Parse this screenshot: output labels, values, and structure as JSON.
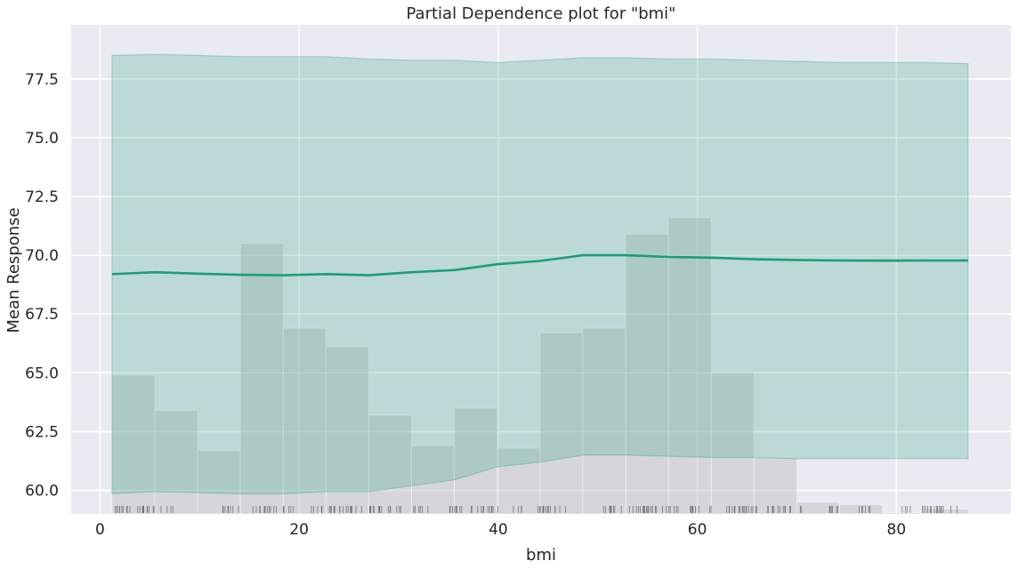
{
  "chart_data": {
    "type": "line",
    "title": "Partial Dependence plot for \"bmi\"",
    "xlabel": "bmi",
    "ylabel": "Mean Response",
    "xlim": [
      -2.9,
      91.5
    ],
    "ylim": [
      59.0,
      79.8
    ],
    "x_ticks": [
      0,
      20,
      40,
      60,
      80
    ],
    "x_tick_labels": [
      "0",
      "20",
      "40",
      "60",
      "80"
    ],
    "y_ticks": [
      60.0,
      62.5,
      65.0,
      67.5,
      70.0,
      72.5,
      75.0,
      77.5
    ],
    "y_tick_labels": [
      "60.0",
      "62.5",
      "65.0",
      "67.5",
      "70.0",
      "72.5",
      "75.0",
      "77.5"
    ],
    "grid": true,
    "colors": {
      "line": "#1b9e77",
      "band": "#1b9e77",
      "histogram": "#a9a9a9",
      "background": "#eaeaf2",
      "grid": "#ffffff",
      "rug": "#555555"
    },
    "series": [
      {
        "x": [
          1.2,
          5.5,
          9.8,
          14.1,
          18.4,
          22.7,
          27.0,
          31.3,
          35.6,
          39.9,
          44.2,
          48.5,
          52.8,
          57.1,
          61.4,
          65.7,
          70.0,
          74.3,
          78.6,
          82.9,
          87.2
        ],
        "values": [
          69.2,
          69.28,
          69.22,
          69.17,
          69.15,
          69.2,
          69.15,
          69.28,
          69.37,
          69.62,
          69.76,
          70.0,
          70.0,
          69.93,
          69.9,
          69.83,
          69.8,
          69.78,
          69.77,
          69.78,
          69.78
        ]
      }
    ],
    "band": {
      "x": [
        1.2,
        5.5,
        9.8,
        14.1,
        18.4,
        22.7,
        27.0,
        31.3,
        35.6,
        39.9,
        44.2,
        48.5,
        52.8,
        57.1,
        61.4,
        65.7,
        70.0,
        74.3,
        78.6,
        82.9,
        87.2
      ],
      "upper": [
        78.5,
        78.55,
        78.5,
        78.45,
        78.45,
        78.45,
        78.35,
        78.3,
        78.3,
        78.2,
        78.3,
        78.4,
        78.4,
        78.35,
        78.35,
        78.3,
        78.25,
        78.2,
        78.2,
        78.2,
        78.15
      ],
      "lower": [
        59.85,
        59.95,
        59.9,
        59.85,
        59.85,
        59.95,
        59.95,
        60.2,
        60.45,
        61.0,
        61.2,
        61.5,
        61.5,
        61.45,
        61.4,
        61.4,
        61.35,
        61.35,
        61.35,
        61.35,
        61.35
      ]
    },
    "histogram": {
      "bin_edges": [
        1.2,
        5.5,
        9.8,
        14.1,
        18.4,
        22.7,
        27.0,
        31.3,
        35.6,
        39.9,
        44.2,
        48.5,
        52.8,
        57.1,
        61.4,
        65.7,
        70.0,
        74.3,
        78.6,
        82.9,
        87.2
      ],
      "tops": [
        64.9,
        63.4,
        61.7,
        70.5,
        66.9,
        66.1,
        63.2,
        61.9,
        63.5,
        61.8,
        66.7,
        66.9,
        70.9,
        71.6,
        65.0,
        61.4,
        59.5,
        59.4,
        59.05,
        59.2
      ]
    },
    "rug_clusters": [
      [
        1.2,
        7.5
      ],
      [
        12.0,
        14.0
      ],
      [
        15.0,
        19.5
      ],
      [
        21.0,
        30.5
      ],
      [
        31.5,
        33.0
      ],
      [
        35.0,
        40.0
      ],
      [
        41.5,
        42.5
      ],
      [
        44.0,
        47.5
      ],
      [
        50.5,
        60.5
      ],
      [
        61.0,
        66.0
      ],
      [
        67.0,
        70.5
      ],
      [
        73.0,
        74.5
      ],
      [
        76.0,
        77.5
      ],
      [
        80.5,
        81.5
      ],
      [
        82.5,
        86.5
      ]
    ]
  }
}
